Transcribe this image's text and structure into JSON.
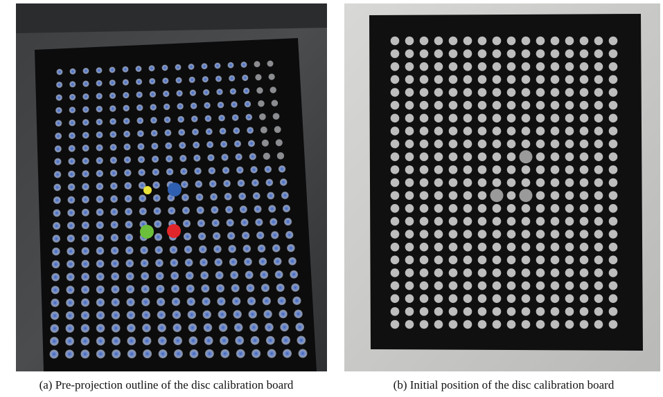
{
  "figure": {
    "panels": [
      {
        "caption": "(a) Pre-projection outline of the disc calibration board"
      },
      {
        "caption": "(b) Initial position of the disc calibration board"
      }
    ]
  }
}
